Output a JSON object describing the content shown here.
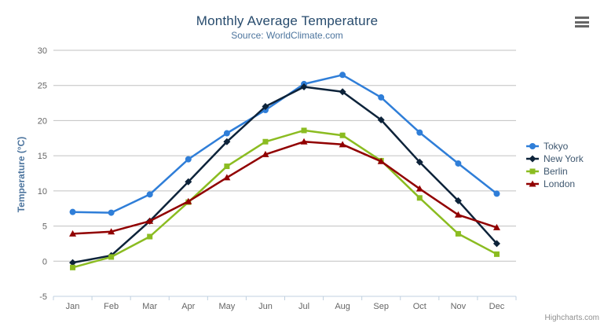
{
  "chart": {
    "title": "Monthly Average Temperature",
    "subtitle": "Source: WorldClimate.com",
    "credits": "Highcharts.com",
    "context_menu_icon": "hamburger-icon"
  },
  "chart_data": {
    "type": "line",
    "title": "Monthly Average Temperature",
    "subtitle": "Source: WorldClimate.com",
    "categories": [
      "Jan",
      "Feb",
      "Mar",
      "Apr",
      "May",
      "Jun",
      "Jul",
      "Aug",
      "Sep",
      "Oct",
      "Nov",
      "Dec"
    ],
    "series": [
      {
        "name": "Tokyo",
        "color": "#2f7ed8",
        "marker": "circle",
        "values": [
          7.0,
          6.9,
          9.5,
          14.5,
          18.2,
          21.5,
          25.2,
          26.5,
          23.3,
          18.3,
          13.9,
          9.6
        ]
      },
      {
        "name": "New York",
        "color": "#0d233a",
        "marker": "diamond",
        "values": [
          -0.2,
          0.8,
          5.7,
          11.3,
          17.0,
          22.0,
          24.8,
          24.1,
          20.1,
          14.1,
          8.6,
          2.5
        ]
      },
      {
        "name": "Berlin",
        "color": "#8bbc21",
        "marker": "square",
        "values": [
          -0.9,
          0.6,
          3.5,
          8.4,
          13.5,
          17.0,
          18.6,
          17.9,
          14.3,
          9.0,
          3.9,
          1.0
        ]
      },
      {
        "name": "London",
        "color": "#910000",
        "marker": "triangle",
        "values": [
          3.9,
          4.2,
          5.7,
          8.5,
          11.9,
          15.2,
          17.0,
          16.6,
          14.2,
          10.3,
          6.6,
          4.8
        ]
      }
    ],
    "xlabel": "",
    "ylabel": "Temperature (°C)",
    "yticks": [
      -5,
      0,
      5,
      10,
      15,
      20,
      25,
      30
    ],
    "ylim": [
      -5,
      30
    ],
    "grid": true,
    "legend_position": "right"
  }
}
